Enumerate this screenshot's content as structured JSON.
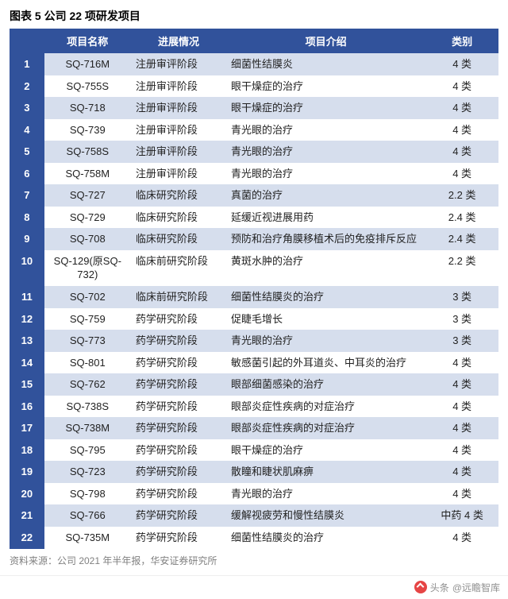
{
  "title": "图表 5 公司 22 项研发项目",
  "columns": [
    "",
    "项目名称",
    "进展情况",
    "项目介绍",
    "类别"
  ],
  "col_widths": [
    "40px",
    "100px",
    "110px",
    "230px",
    "84px"
  ],
  "header_bg": "#31529b",
  "header_fg": "#ffffff",
  "band_bg": "#d6deed",
  "plain_bg": "#ffffff",
  "idx_bg": "#31529b",
  "idx_fg": "#ffffff",
  "rows": [
    {
      "idx": "1",
      "name": "SQ-716M",
      "stage": "注册审评阶段",
      "desc": "细菌性结膜炎",
      "cat": "4 类"
    },
    {
      "idx": "2",
      "name": "SQ-755S",
      "stage": "注册审评阶段",
      "desc": "眼干燥症的治疗",
      "cat": "4 类"
    },
    {
      "idx": "3",
      "name": "SQ-718",
      "stage": "注册审评阶段",
      "desc": "眼干燥症的治疗",
      "cat": "4 类"
    },
    {
      "idx": "4",
      "name": "SQ-739",
      "stage": "注册审评阶段",
      "desc": "青光眼的治疗",
      "cat": "4 类"
    },
    {
      "idx": "5",
      "name": "SQ-758S",
      "stage": "注册审评阶段",
      "desc": "青光眼的治疗",
      "cat": "4 类"
    },
    {
      "idx": "6",
      "name": "SQ-758M",
      "stage": "注册审评阶段",
      "desc": "青光眼的治疗",
      "cat": "4 类"
    },
    {
      "idx": "7",
      "name": "SQ-727",
      "stage": "临床研究阶段",
      "desc": "真菌的治疗",
      "cat": "2.2 类"
    },
    {
      "idx": "8",
      "name": "SQ-729",
      "stage": "临床研究阶段",
      "desc": "延缓近视进展用药",
      "cat": "2.4 类"
    },
    {
      "idx": "9",
      "name": "SQ-708",
      "stage": "临床研究阶段",
      "desc": "预防和治疗角膜移植术后的免疫排斥反应",
      "cat": "2.4 类"
    },
    {
      "idx": "10",
      "name": "SQ-129(原SQ-732)",
      "stage": "临床前研究阶段",
      "desc": "黄斑水肿的治疗",
      "cat": "2.2 类"
    },
    {
      "idx": "11",
      "name": "SQ-702",
      "stage": "临床前研究阶段",
      "desc": "细菌性结膜炎的治疗",
      "cat": "3 类"
    },
    {
      "idx": "12",
      "name": "SQ-759",
      "stage": "药学研究阶段",
      "desc": "促睫毛增长",
      "cat": "3 类"
    },
    {
      "idx": "13",
      "name": "SQ-773",
      "stage": "药学研究阶段",
      "desc": "青光眼的治疗",
      "cat": "3 类"
    },
    {
      "idx": "14",
      "name": "SQ-801",
      "stage": "药学研究阶段",
      "desc": "敏感菌引起的外耳道炎、中耳炎的治疗",
      "cat": "4 类"
    },
    {
      "idx": "15",
      "name": "SQ-762",
      "stage": "药学研究阶段",
      "desc": "眼部细菌感染的治疗",
      "cat": "4 类"
    },
    {
      "idx": "16",
      "name": "SQ-738S",
      "stage": "药学研究阶段",
      "desc": "眼部炎症性疾病的对症治疗",
      "cat": "4 类"
    },
    {
      "idx": "17",
      "name": "SQ-738M",
      "stage": "药学研究阶段",
      "desc": "眼部炎症性疾病的对症治疗",
      "cat": "4 类"
    },
    {
      "idx": "18",
      "name": "SQ-795",
      "stage": "药学研究阶段",
      "desc": "眼干燥症的治疗",
      "cat": "4 类"
    },
    {
      "idx": "19",
      "name": "SQ-723",
      "stage": "药学研究阶段",
      "desc": "散瞳和睫状肌麻痹",
      "cat": "4 类"
    },
    {
      "idx": "20",
      "name": "SQ-798",
      "stage": "药学研究阶段",
      "desc": "青光眼的治疗",
      "cat": "4 类"
    },
    {
      "idx": "21",
      "name": "SQ-766",
      "stage": "药学研究阶段",
      "desc": "缓解视疲劳和慢性结膜炎",
      "cat": "中药 4 类"
    },
    {
      "idx": "22",
      "name": "SQ-735M",
      "stage": "药学研究阶段",
      "desc": "细菌性结膜炎的治疗",
      "cat": "4 类"
    }
  ],
  "source": "资料来源：公司 2021 年半年报，华安证券研究所",
  "footer_prefix": "头条",
  "footer_author": "@远瞻智库"
}
